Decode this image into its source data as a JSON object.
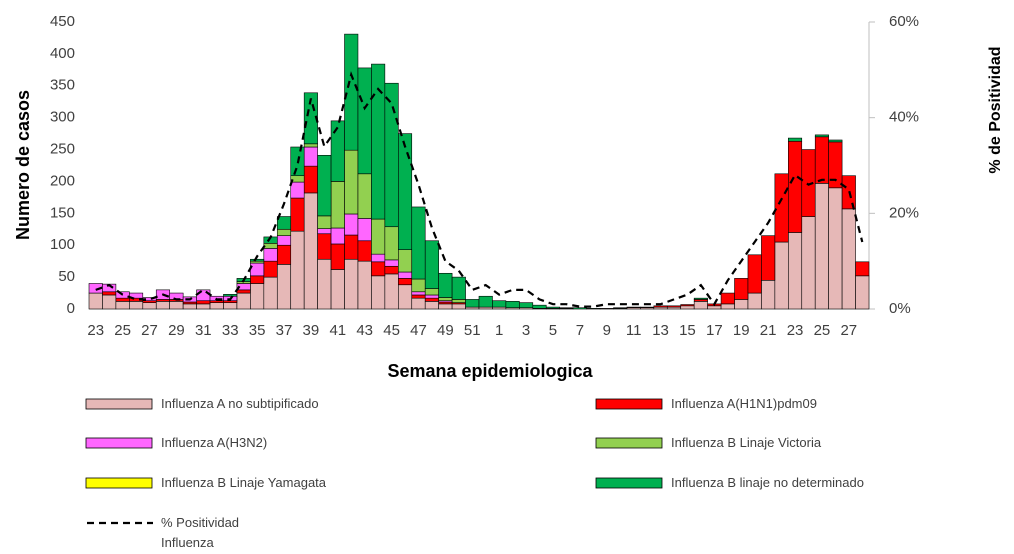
{
  "chart_data": {
    "type": "bar",
    "stacked": true,
    "x_label": "Semana epidemiologica",
    "y_label": "Numero de casos",
    "y2_label": "% de Positividad",
    "categories": [
      23,
      null,
      25,
      null,
      27,
      null,
      29,
      null,
      31,
      null,
      33,
      null,
      35,
      null,
      37,
      null,
      39,
      null,
      41,
      null,
      43,
      null,
      45,
      null,
      47,
      null,
      49,
      null,
      51,
      null,
      1,
      null,
      3,
      null,
      5,
      null,
      7,
      null,
      9,
      null,
      11,
      null,
      13,
      null,
      15,
      null,
      17,
      null,
      19,
      null,
      21,
      null,
      23,
      null,
      25,
      null,
      27,
      null
    ],
    "ylim": [
      0,
      450
    ],
    "yticks": [
      0,
      50,
      100,
      150,
      200,
      250,
      300,
      350,
      400,
      450
    ],
    "y2lim": [
      0,
      60
    ],
    "y2ticks": [
      {
        "value": 0,
        "label": "0%"
      },
      {
        "value": 20,
        "label": "20%"
      },
      {
        "value": 40,
        "label": "40%"
      },
      {
        "value": 60,
        "label": "60%"
      }
    ],
    "series": [
      {
        "name": "Influenza A no subtipificado",
        "color": "#e6b8b7",
        "values": [
          25,
          22,
          12,
          12,
          10,
          12,
          12,
          8,
          8,
          10,
          10,
          25,
          40,
          50,
          70,
          122,
          182,
          78,
          62,
          78,
          75,
          52,
          55,
          38,
          17,
          12,
          8,
          8,
          3,
          3,
          3,
          2,
          2,
          1,
          1,
          1,
          0,
          0,
          1,
          1,
          2,
          2,
          3,
          3,
          5,
          12,
          5,
          8,
          15,
          25,
          45,
          105,
          120,
          145,
          197,
          190,
          157,
          52
        ]
      },
      {
        "name": "Influenza A(H1N1)pdm09",
        "color": "#ff0000",
        "values": [
          0,
          5,
          5,
          5,
          3,
          3,
          3,
          3,
          5,
          3,
          3,
          5,
          12,
          25,
          30,
          52,
          42,
          40,
          40,
          38,
          32,
          22,
          12,
          10,
          5,
          5,
          3,
          2,
          0,
          0,
          0,
          0,
          0,
          0,
          0,
          0,
          0,
          0,
          0,
          0,
          1,
          1,
          2,
          2,
          2,
          3,
          3,
          17,
          33,
          60,
          70,
          107,
          143,
          105,
          73,
          72,
          52,
          22
        ]
      },
      {
        "name": "Influenza A(H3N2)",
        "color": "#ff66ff",
        "values": [
          15,
          12,
          10,
          8,
          5,
          15,
          10,
          8,
          17,
          7,
          7,
          10,
          20,
          20,
          15,
          25,
          30,
          8,
          25,
          33,
          35,
          12,
          10,
          10,
          5,
          5,
          2,
          0,
          0,
          0,
          0,
          0,
          0,
          0,
          0,
          0,
          0,
          0,
          0,
          0,
          0,
          0,
          0,
          0,
          0,
          0,
          0,
          0,
          0,
          0,
          0,
          0,
          0,
          0,
          0,
          0,
          0,
          0
        ]
      },
      {
        "name": "Influenza B Linaje Victoria",
        "color": "#92d050",
        "values": [
          0,
          0,
          0,
          0,
          0,
          0,
          0,
          0,
          0,
          0,
          0,
          3,
          3,
          8,
          10,
          10,
          5,
          20,
          73,
          100,
          70,
          55,
          52,
          35,
          20,
          10,
          5,
          5,
          0,
          0,
          0,
          0,
          0,
          0,
          0,
          0,
          0,
          0,
          0,
          0,
          0,
          0,
          0,
          0,
          0,
          0,
          0,
          0,
          0,
          0,
          0,
          0,
          0,
          0,
          0,
          0,
          0,
          0
        ]
      },
      {
        "name": "Influenza B Linaje Yamagata",
        "color": "#ffff00",
        "values": [
          0,
          0,
          0,
          0,
          0,
          0,
          0,
          0,
          0,
          0,
          0,
          0,
          0,
          0,
          0,
          0,
          0,
          0,
          0,
          0,
          0,
          0,
          0,
          0,
          0,
          0,
          0,
          0,
          0,
          0,
          0,
          0,
          0,
          0,
          0,
          0,
          0,
          0,
          0,
          0,
          0,
          0,
          0,
          0,
          0,
          0,
          0,
          0,
          0,
          0,
          0,
          0,
          0,
          0,
          0,
          0,
          0,
          0
        ]
      },
      {
        "name": "Influenza B linaje no determinado",
        "color": "#00b050",
        "values": [
          0,
          0,
          0,
          0,
          0,
          0,
          0,
          0,
          0,
          0,
          3,
          5,
          3,
          10,
          20,
          45,
          80,
          95,
          95,
          182,
          166,
          243,
          225,
          182,
          113,
          75,
          38,
          35,
          12,
          17,
          10,
          10,
          8,
          5,
          2,
          1,
          2,
          1,
          0,
          1,
          0,
          0,
          0,
          0,
          0,
          2,
          0,
          0,
          0,
          0,
          0,
          0,
          5,
          0,
          3,
          3,
          0,
          0
        ]
      },
      {
        "name": "% Positividad Influenza",
        "color": "#000000",
        "type": "line",
        "axis": "y2",
        "dashed": true,
        "values": [
          4,
          5,
          3,
          2,
          2,
          3,
          2,
          2,
          4,
          2,
          2,
          6,
          11,
          15,
          22,
          30,
          44,
          34,
          38,
          49,
          42,
          46,
          43,
          34,
          26,
          17,
          10,
          8,
          4,
          5,
          3,
          4,
          4,
          2,
          1,
          1,
          0.5,
          0.5,
          1,
          1,
          1,
          1,
          1,
          2,
          3,
          5,
          1,
          6,
          10,
          14,
          18,
          23,
          28,
          26,
          27,
          27,
          25,
          14
        ]
      }
    ]
  }
}
